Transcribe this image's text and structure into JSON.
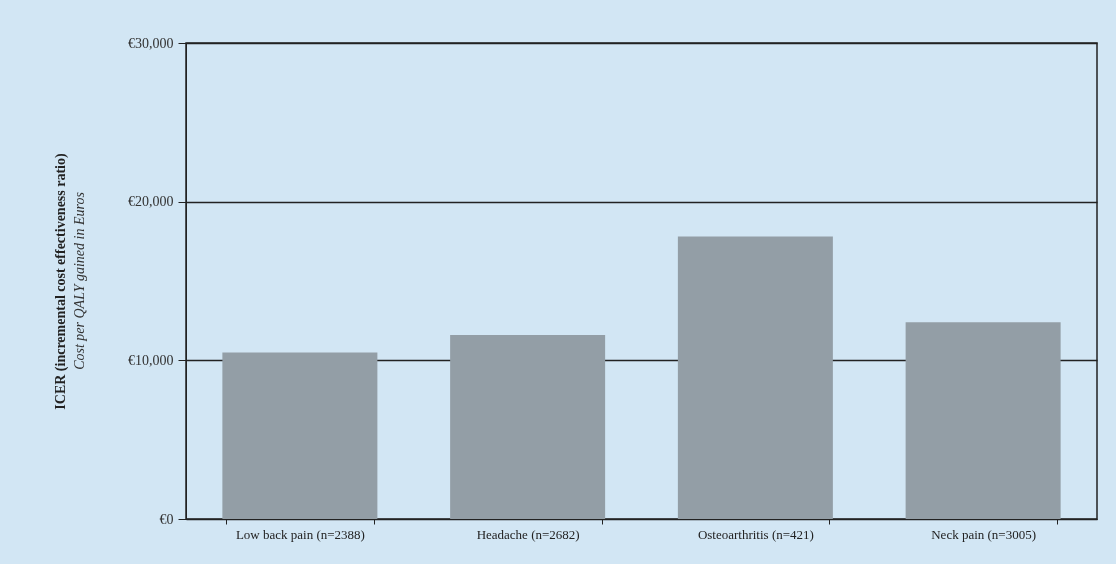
{
  "chart_data": {
    "type": "bar",
    "ylabel": "ICER (incremental cost effectiveness ratio)",
    "annotations": [
      "Cost per QALY gained in Euros"
    ],
    "categories": [
      "Low back pain (n=2388)",
      "Headache (n=2682)",
      "Osteoarthritis (n=421)",
      "Neck pain (n=3005)"
    ],
    "values": [
      10500,
      11600,
      17800,
      12400
    ],
    "color": "#939ea6",
    "ylim": [
      0,
      30000
    ],
    "yticks": [
      {
        "value": 0,
        "label": "€0"
      },
      {
        "value": 10000,
        "label": "€10,000"
      },
      {
        "value": 20000,
        "label": "€20,000"
      },
      {
        "value": 30000,
        "label": "€30,000"
      }
    ],
    "grid": "y"
  }
}
